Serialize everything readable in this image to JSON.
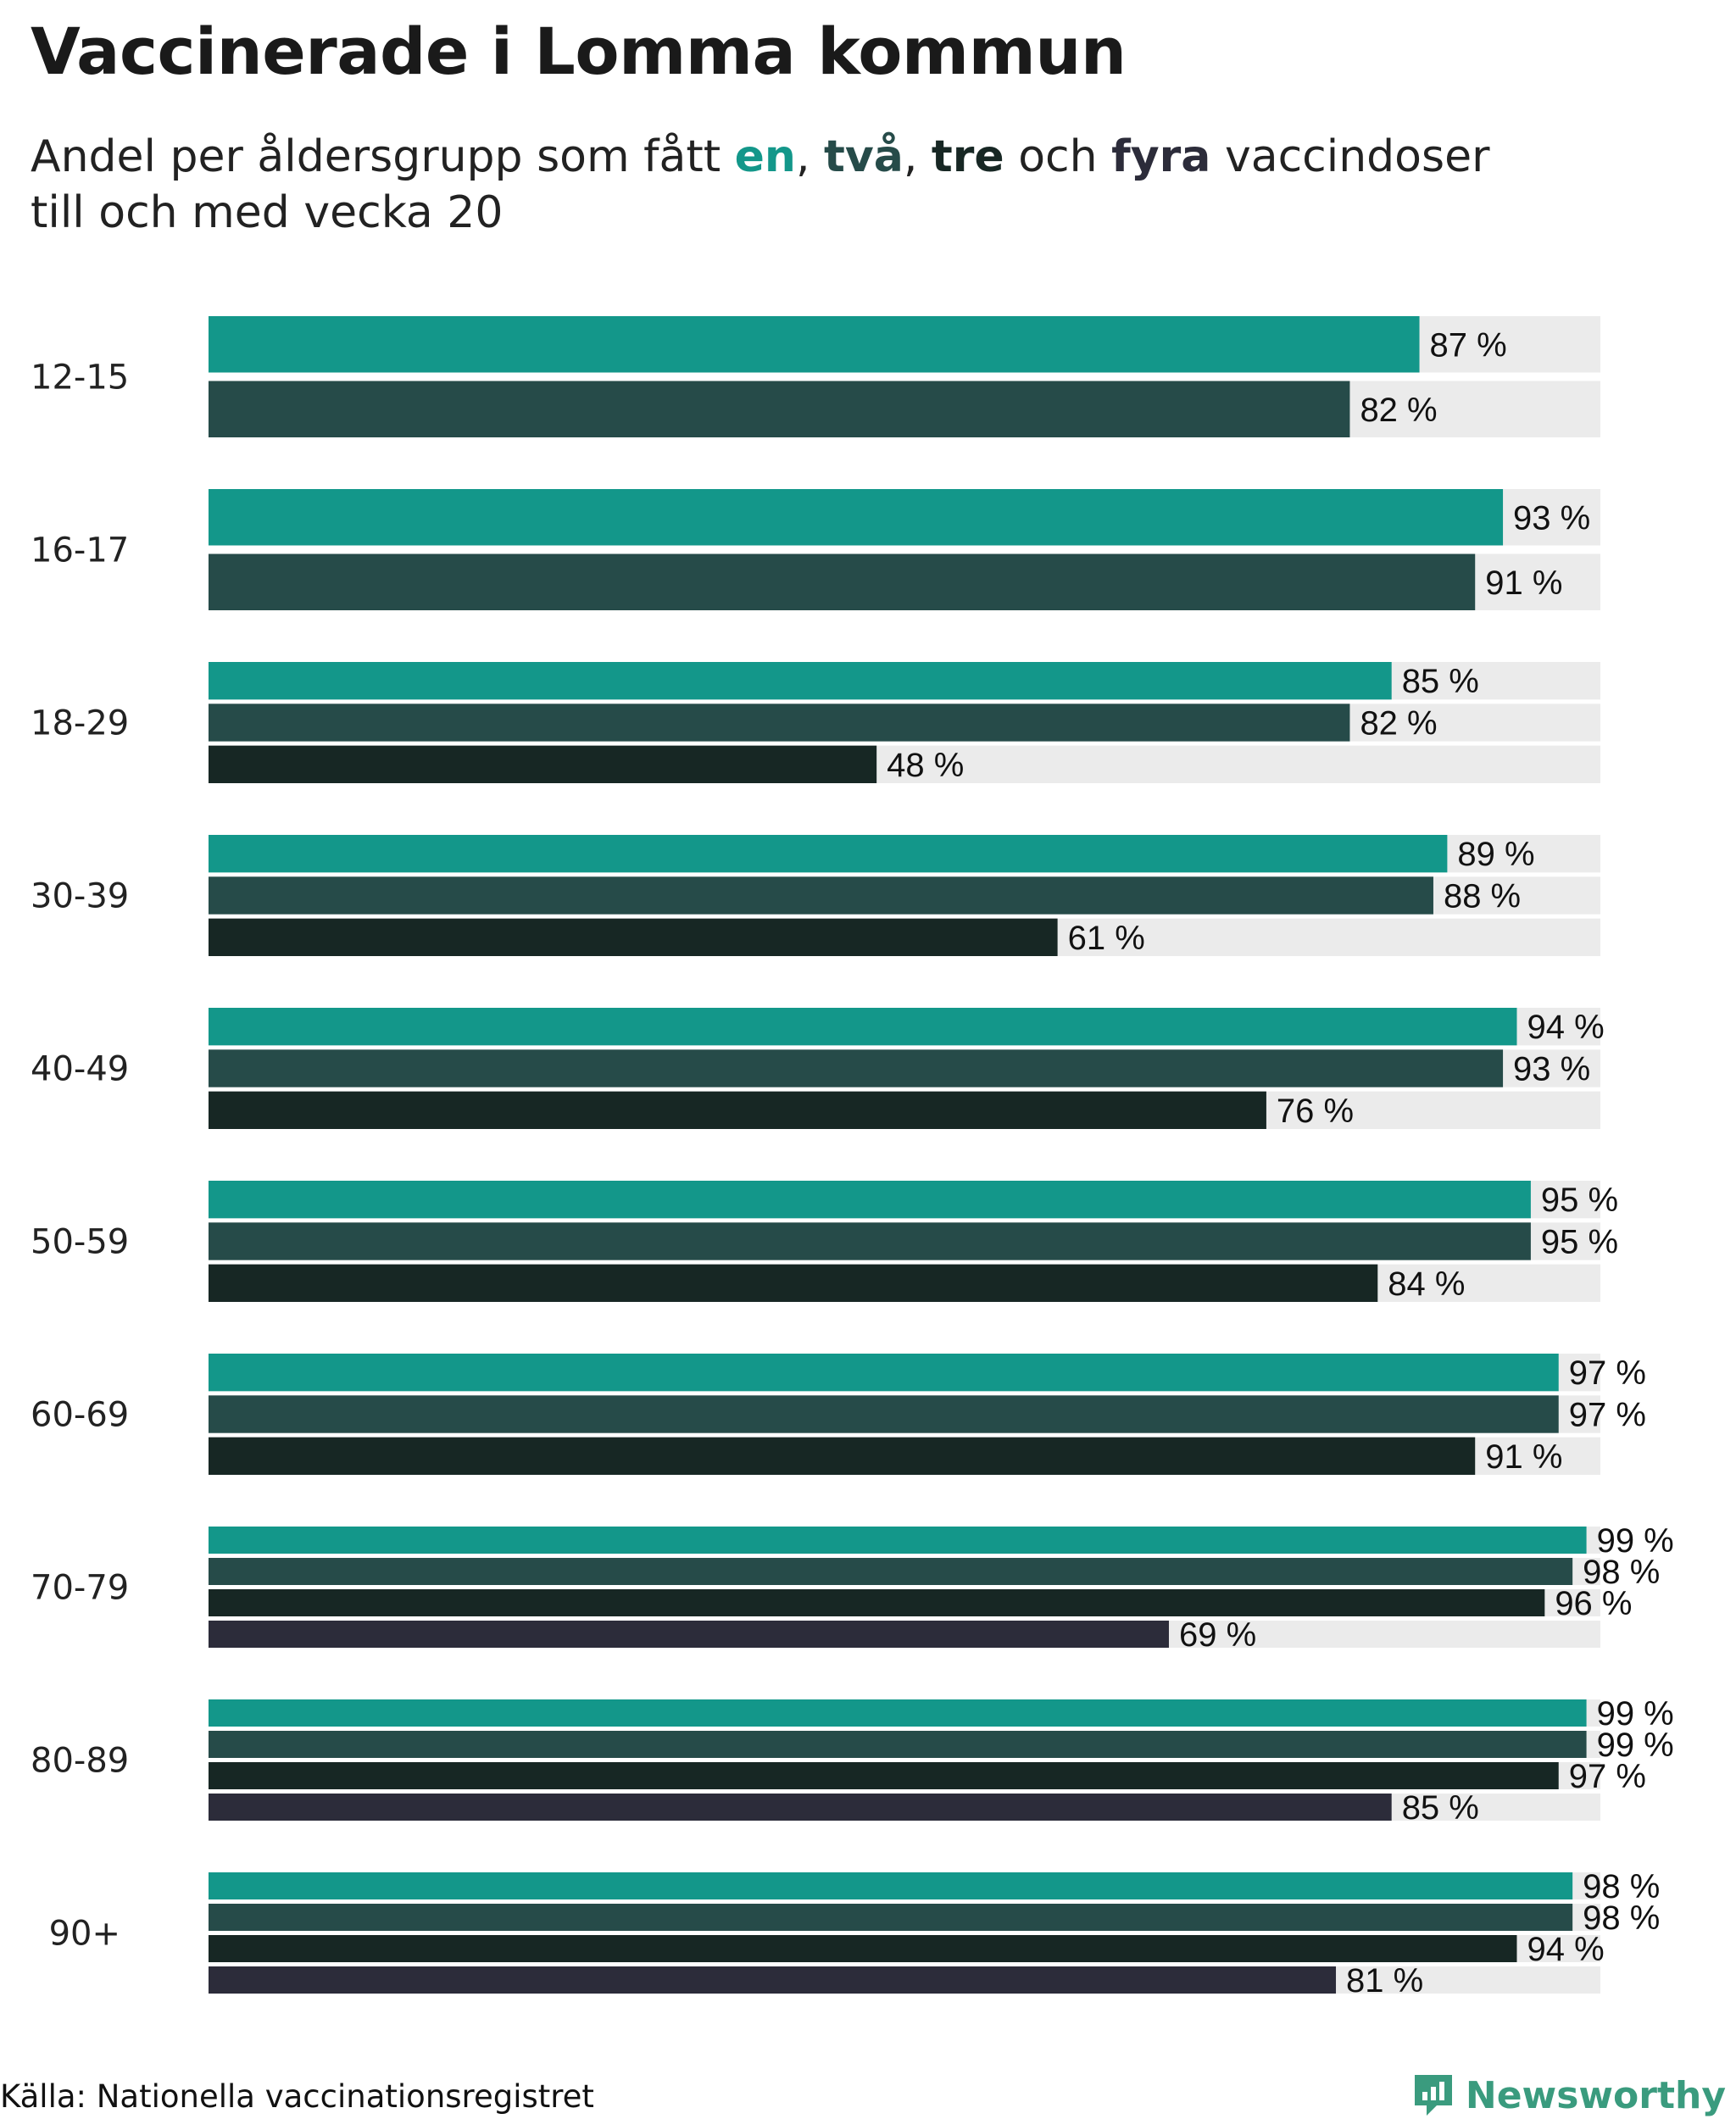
{
  "title": "Vaccinerade i Lomma kommun",
  "subtitle": {
    "lead": "Andel per åldersgrupp som fått",
    "w1": "en",
    "c1": ",",
    "w2": "två",
    "c2": ",",
    "w3": "tre",
    "and": "och",
    "w4": "fyra",
    "rest": "vaccindoser",
    "line2": "till och med vecka 20"
  },
  "colors": {
    "dose1": "#13978a",
    "dose2": "#264b49",
    "dose3": "#172724",
    "dose4": "#2c2c3a",
    "track": "#ebebeb",
    "brand": "#3a9b7e"
  },
  "chart_data": {
    "type": "bar",
    "orientation": "horizontal",
    "title": "Vaccinerade i Lomma kommun",
    "subtitle": "Andel per åldersgrupp som fått en, två, tre och fyra vaccindoser till och med vecka 20",
    "xlim": [
      0,
      100
    ],
    "value_suffix": " %",
    "grid": false,
    "legend": "inline in subtitle",
    "categories": [
      "12-15",
      "16-17",
      "18-29",
      "30-39",
      "40-49",
      "50-59",
      "60-69",
      "70-79",
      "80-89",
      "90+"
    ],
    "series": [
      {
        "name": "en",
        "values": [
          87,
          93,
          85,
          89,
          94,
          95,
          97,
          99,
          99,
          98
        ]
      },
      {
        "name": "två",
        "values": [
          82,
          91,
          82,
          88,
          93,
          95,
          97,
          98,
          99,
          98
        ]
      },
      {
        "name": "tre",
        "values": [
          null,
          null,
          48,
          61,
          76,
          84,
          91,
          96,
          97,
          94
        ]
      },
      {
        "name": "fyra",
        "values": [
          null,
          null,
          null,
          null,
          null,
          null,
          null,
          69,
          85,
          81
        ]
      }
    ]
  },
  "footer": {
    "source": "Källa: Nationella vaccinationsregistret",
    "brand": "Newsworthy",
    "logo_icon": "newsworthy-logo-icon"
  }
}
